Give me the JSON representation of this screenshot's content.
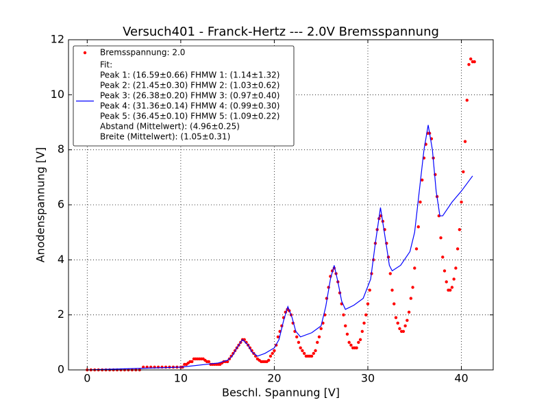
{
  "chart_data": {
    "type": "scatter",
    "title": "Versuch401 - Franck-Hertz --- 2.0V Bremsspannung",
    "x_label": "Beschl. Spannung [V]",
    "y_label": "Anodenspannung [V]",
    "xlim": [
      -2,
      43.4
    ],
    "ylim": [
      0,
      12
    ],
    "xticks": [
      0,
      10,
      20,
      30,
      40
    ],
    "yticks": [
      0,
      2,
      4,
      6,
      8,
      10,
      12
    ],
    "grid": true,
    "legend": "upper left",
    "series": [
      {
        "name": "Bremsspannung: 2.0",
        "type": "scatter",
        "color": "#ff0000",
        "x": [
          0,
          0.4,
          0.8,
          1.2,
          1.6,
          2,
          2.4,
          2.8,
          3.2,
          3.6,
          4,
          4.4,
          4.8,
          5.2,
          5.6,
          6,
          6.4,
          6.8,
          7.2,
          7.6,
          8,
          8.4,
          8.8,
          9.2,
          9.6,
          10,
          10.2,
          10.4,
          10.6,
          10.8,
          11,
          11.2,
          11.4,
          11.6,
          11.8,
          12,
          12.2,
          12.4,
          12.6,
          12.8,
          13,
          13.2,
          13.4,
          13.6,
          13.8,
          14,
          14.2,
          14.4,
          14.6,
          14.8,
          15,
          15.2,
          15.4,
          15.6,
          15.8,
          16,
          16.2,
          16.4,
          16.6,
          16.8,
          17,
          17.2,
          17.4,
          17.6,
          17.8,
          18,
          18.2,
          18.4,
          18.6,
          18.8,
          19,
          19.2,
          19.4,
          19.6,
          19.8,
          20,
          20.2,
          20.4,
          20.6,
          20.8,
          21,
          21.2,
          21.4,
          21.6,
          21.8,
          22,
          22.2,
          22.4,
          22.6,
          22.8,
          23,
          23.2,
          23.4,
          23.6,
          23.8,
          24,
          24.2,
          24.4,
          24.6,
          24.8,
          25,
          25.2,
          25.4,
          25.6,
          25.8,
          26,
          26.2,
          26.4,
          26.6,
          26.8,
          27,
          27.2,
          27.4,
          27.6,
          27.8,
          28,
          28.2,
          28.4,
          28.6,
          28.8,
          29,
          29.2,
          29.4,
          29.6,
          29.8,
          30,
          30.2,
          30.4,
          30.6,
          30.8,
          31,
          31.2,
          31.4,
          31.6,
          31.8,
          32,
          32.2,
          32.4,
          32.6,
          32.8,
          33,
          33.2,
          33.4,
          33.6,
          33.8,
          34,
          34.2,
          34.4,
          34.6,
          34.8,
          35,
          35.2,
          35.4,
          35.6,
          35.8,
          36,
          36.2,
          36.4,
          36.6,
          36.8,
          37,
          37.2,
          37.4,
          37.6,
          37.8,
          38,
          38.2,
          38.4,
          38.6,
          38.8,
          39,
          39.2,
          39.4,
          39.6,
          39.8,
          40,
          40.2,
          40.4,
          40.6,
          40.8,
          41,
          41.2,
          41.4
        ],
        "values": [
          0,
          0,
          0,
          0,
          0,
          0,
          0,
          0,
          0,
          0,
          0,
          0,
          0,
          0,
          0,
          0.1,
          0.1,
          0.1,
          0.1,
          0.1,
          0.1,
          0.1,
          0.1,
          0.1,
          0.1,
          0.1,
          0.1,
          0.2,
          0.2,
          0.25,
          0.3,
          0.3,
          0.4,
          0.4,
          0.4,
          0.4,
          0.4,
          0.4,
          0.35,
          0.3,
          0.3,
          0.2,
          0.2,
          0.2,
          0.2,
          0.2,
          0.2,
          0.25,
          0.3,
          0.3,
          0.3,
          0.4,
          0.5,
          0.6,
          0.7,
          0.8,
          0.9,
          1.0,
          1.1,
          1.1,
          1.0,
          0.9,
          0.8,
          0.7,
          0.6,
          0.5,
          0.4,
          0.35,
          0.3,
          0.3,
          0.3,
          0.3,
          0.35,
          0.5,
          0.6,
          0.7,
          0.9,
          1.2,
          1.4,
          1.6,
          1.9,
          2.1,
          2.2,
          2.15,
          2.0,
          1.7,
          1.4,
          1.2,
          1.0,
          0.8,
          0.7,
          0.6,
          0.5,
          0.5,
          0.5,
          0.5,
          0.6,
          0.7,
          1.0,
          1.2,
          1.5,
          1.7,
          2.0,
          2.6,
          3.0,
          3.4,
          3.6,
          3.7,
          3.5,
          3.2,
          2.8,
          2.4,
          2.0,
          1.6,
          1.3,
          1.0,
          0.9,
          0.8,
          0.8,
          0.8,
          1.0,
          1.1,
          1.4,
          1.7,
          2.0,
          2.4,
          2.9,
          3.5,
          4.0,
          4.6,
          5.1,
          5.5,
          5.6,
          5.4,
          5.1,
          4.6,
          4.1,
          3.5,
          2.9,
          2.4,
          1.9,
          1.7,
          1.5,
          1.4,
          1.4,
          1.6,
          1.8,
          2.1,
          2.6,
          3.0,
          3.7,
          4.4,
          5.2,
          6.1,
          6.9,
          7.7,
          8.2,
          8.6,
          8.6,
          8.4,
          7.7,
          7.1,
          6.3,
          5.6,
          4.8,
          4.1,
          3.6,
          3.2,
          2.9,
          2.9,
          3.0,
          3.3,
          3.7,
          4.4,
          5.1,
          6.1,
          7.2,
          8.3,
          9.8,
          11.1,
          11.3,
          11.2,
          11.2
        ]
      },
      {
        "name": [
          "Fit:",
          "Peak 1: (16.59±0.66)  FHMW 1: (1.14±1.32)",
          "Peak 2: (21.45±0.30)  FHMW 2: (1.03±0.62)",
          "Peak 3: (26.38±0.20)  FHMW 3: (0.97±0.40)",
          "Peak 4: (31.36±0.14)  FHMW 4: (0.99±0.30)",
          "Peak 5: (36.45±0.10)  FHMW 5: (1.09±0.22)",
          "Abstand (Mittelwert): (4.96±0.25)",
          "Breite     (Mittelwert): (1.05±0.31)"
        ],
        "type": "line",
        "color": "#0000ff",
        "x": [
          0,
          10,
          14,
          15,
          15.5,
          16,
          16.6,
          17.2,
          17.6,
          18.2,
          19,
          20,
          20.5,
          21,
          21.45,
          21.9,
          22.3,
          22.8,
          24,
          25,
          25.5,
          26,
          26.4,
          26.8,
          27.2,
          27.6,
          28.5,
          29.5,
          30.3,
          30.8,
          31.35,
          31.9,
          32.3,
          32.6,
          33.5,
          34.5,
          35,
          35.5,
          36,
          36.45,
          36.9,
          37.3,
          37.7,
          38,
          39,
          40,
          41.2
        ],
        "values": [
          0,
          0.1,
          0.25,
          0.35,
          0.5,
          0.8,
          1.1,
          0.9,
          0.65,
          0.5,
          0.6,
          0.8,
          1.1,
          1.8,
          2.3,
          1.9,
          1.4,
          1.2,
          1.35,
          1.6,
          2.3,
          3.3,
          3.8,
          3.2,
          2.5,
          2.2,
          2.35,
          2.6,
          3.3,
          4.6,
          5.9,
          4.7,
          3.8,
          3.6,
          3.8,
          4.3,
          5.0,
          6.5,
          8.0,
          8.9,
          8.0,
          6.5,
          5.6,
          5.6,
          6.1,
          6.5,
          7.05
        ]
      }
    ]
  }
}
